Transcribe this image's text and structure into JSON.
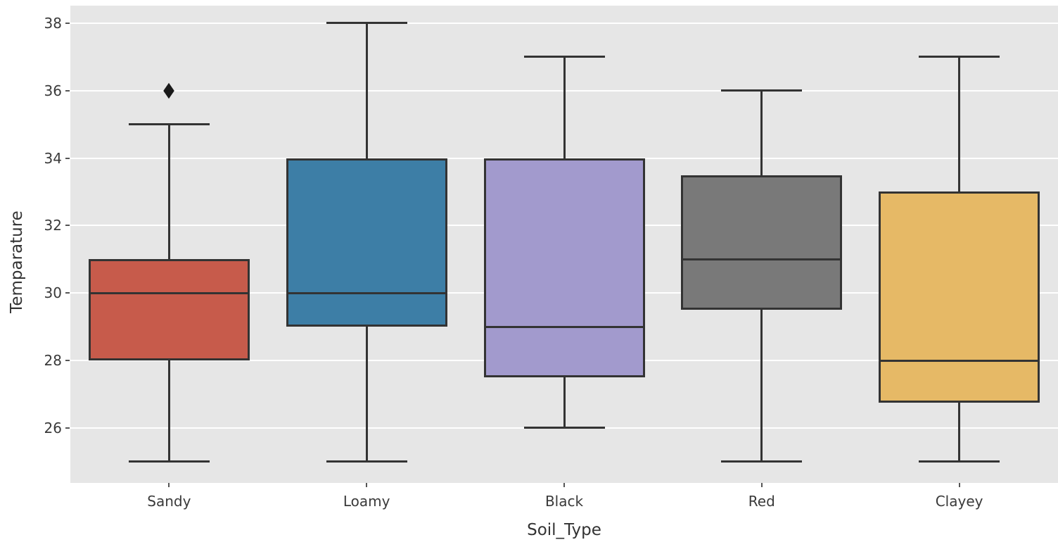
{
  "chart_data": {
    "type": "box",
    "title": "",
    "xlabel": "Soil_Type",
    "ylabel": "Temparature",
    "categories": [
      "Sandy",
      "Loamy",
      "Black",
      "Red",
      "Clayey"
    ],
    "series": [
      {
        "category": "Sandy",
        "whisker_low": 25,
        "q1": 28,
        "median": 30,
        "q3": 31,
        "whisker_high": 35,
        "outliers": [
          36
        ],
        "color": "#C75B4B"
      },
      {
        "category": "Loamy",
        "whisker_low": 25,
        "q1": 29,
        "median": 30,
        "q3": 34,
        "whisker_high": 38,
        "outliers": [],
        "color": "#3D7EA6"
      },
      {
        "category": "Black",
        "whisker_low": 26,
        "q1": 27.5,
        "median": 29,
        "q3": 34,
        "whisker_high": 37,
        "outliers": [],
        "color": "#A29ACD"
      },
      {
        "category": "Red",
        "whisker_low": 25,
        "q1": 29.5,
        "median": 31,
        "q3": 33.5,
        "whisker_high": 36,
        "outliers": [],
        "color": "#797979"
      },
      {
        "category": "Clayey",
        "whisker_low": 25,
        "q1": 26.75,
        "median": 28,
        "q3": 33,
        "whisker_high": 37,
        "outliers": [],
        "color": "#E6B966"
      }
    ],
    "yticks": [
      26,
      28,
      30,
      32,
      34,
      36,
      38
    ],
    "ylim": [
      24.37,
      38.52
    ],
    "grid": true,
    "legend": false,
    "colors": {
      "plot_background": "#E6E6E6",
      "gridline": "#FFFFFF",
      "box_edge": "#333333",
      "outlier": "#1A1A1A",
      "tick_mark": "#555555",
      "tick_label_text": "#3A3A3A",
      "axis_label_text": "#333333"
    }
  }
}
